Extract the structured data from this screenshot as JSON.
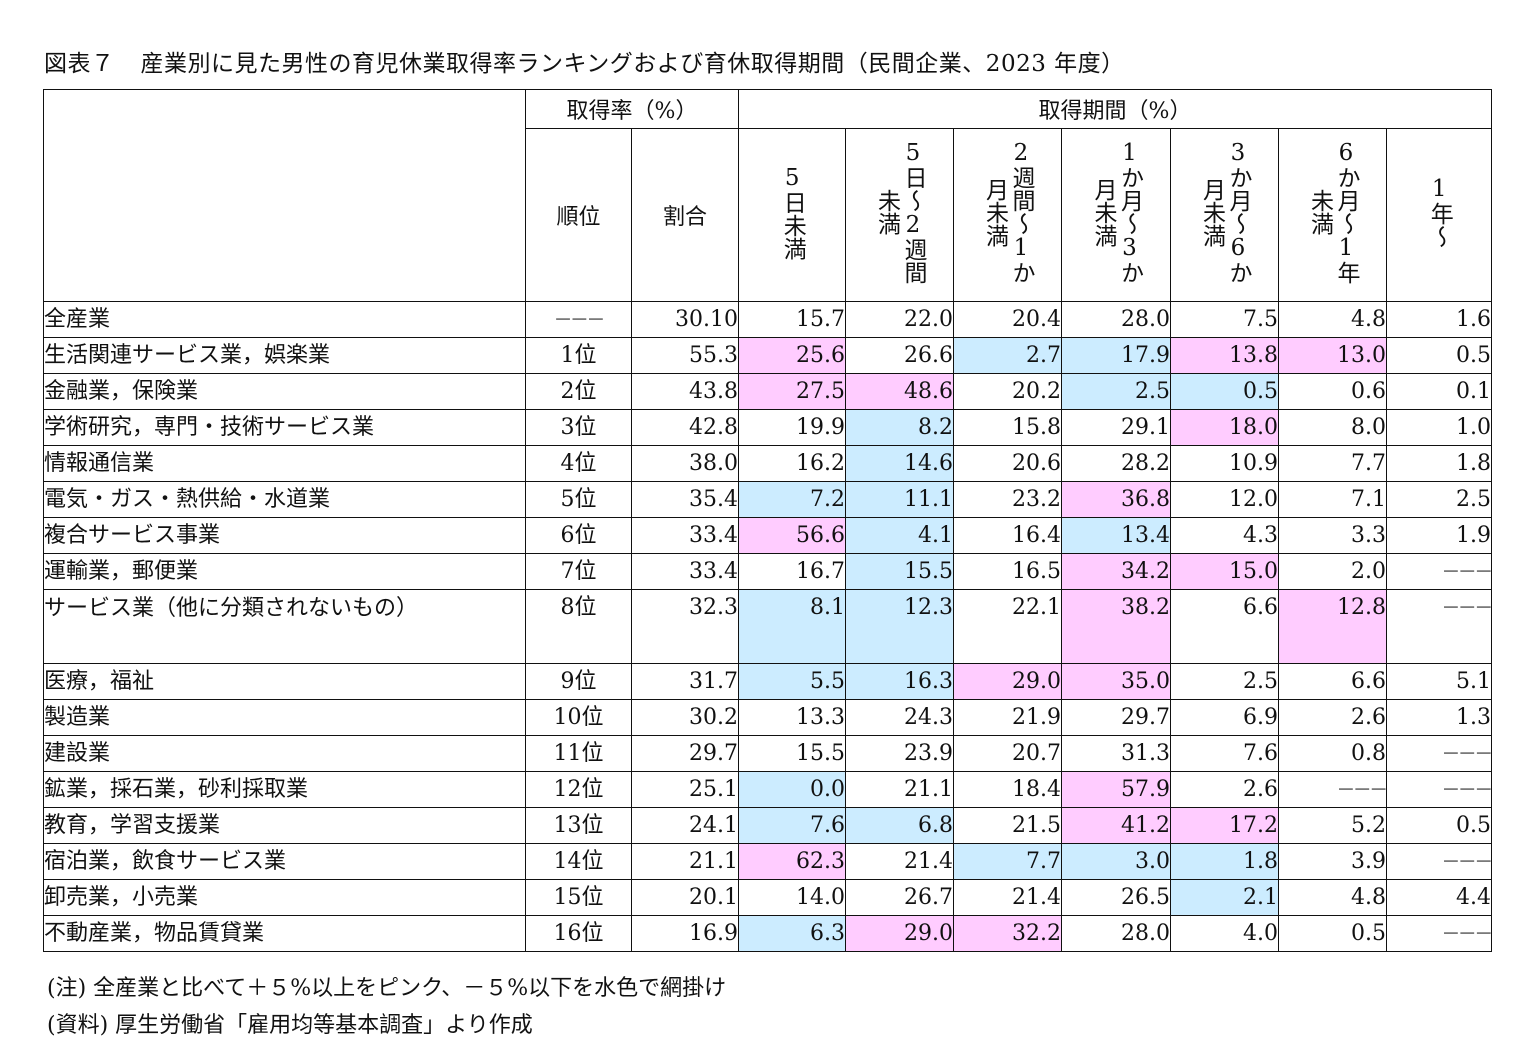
{
  "title": {
    "figure_number": "図表７",
    "text": "産業別に見た男性の育児休業取得率ランキングおよび育休取得期間（民間企業、2023 年度）"
  },
  "header": {
    "rate_group": "取得率（%）",
    "period_group": "取得期間（%）",
    "rank": "順位",
    "ratio": "割合",
    "periods": [
      "5日未満",
      "5日～2週間未満",
      "2週間～1か月未満",
      "1か月～3か月未満",
      "3か月～6か月未満",
      "6か月～1年未満",
      "1年～"
    ]
  },
  "legend_colors": {
    "pink": "#FFCCFF",
    "blue": "#CCECFF"
  },
  "rows": [
    {
      "industry": "全産業",
      "rank": "−−−",
      "ratio": "30.10",
      "p": [
        "15.7",
        "22.0",
        "20.4",
        "28.0",
        "7.5",
        "4.8",
        "1.6"
      ],
      "h": [
        "",
        "",
        "",
        "",
        "",
        "",
        ""
      ]
    },
    {
      "industry": "生活関連サービス業，娯楽業",
      "rank": "1位",
      "ratio": "55.3",
      "p": [
        "25.6",
        "26.6",
        "2.7",
        "17.9",
        "13.8",
        "13.0",
        "0.5"
      ],
      "h": [
        "pink",
        "",
        "blue",
        "blue",
        "pink",
        "pink",
        ""
      ]
    },
    {
      "industry": "金融業，保険業",
      "rank": "2位",
      "ratio": "43.8",
      "p": [
        "27.5",
        "48.6",
        "20.2",
        "2.5",
        "0.5",
        "0.6",
        "0.1"
      ],
      "h": [
        "pink",
        "pink",
        "",
        "blue",
        "blue",
        "",
        ""
      ]
    },
    {
      "industry": "学術研究，専門・技術サービス業",
      "rank": "3位",
      "ratio": "42.8",
      "p": [
        "19.9",
        "8.2",
        "15.8",
        "29.1",
        "18.0",
        "8.0",
        "1.0"
      ],
      "h": [
        "",
        "blue",
        "",
        "",
        "pink",
        "",
        ""
      ]
    },
    {
      "industry": "情報通信業",
      "rank": "4位",
      "ratio": "38.0",
      "p": [
        "16.2",
        "14.6",
        "20.6",
        "28.2",
        "10.9",
        "7.7",
        "1.8"
      ],
      "h": [
        "",
        "blue",
        "",
        "",
        "",
        "",
        ""
      ]
    },
    {
      "industry": "電気・ガス・熱供給・水道業",
      "rank": "5位",
      "ratio": "35.4",
      "p": [
        "7.2",
        "11.1",
        "23.2",
        "36.8",
        "12.0",
        "7.1",
        "2.5"
      ],
      "h": [
        "blue",
        "blue",
        "",
        "pink",
        "",
        "",
        ""
      ]
    },
    {
      "industry": "複合サービス事業",
      "rank": "6位",
      "ratio": "33.4",
      "p": [
        "56.6",
        "4.1",
        "16.4",
        "13.4",
        "4.3",
        "3.3",
        "1.9"
      ],
      "h": [
        "pink",
        "blue",
        "",
        "blue",
        "",
        "",
        ""
      ]
    },
    {
      "industry": "運輸業，郵便業",
      "rank": "7位",
      "ratio": "33.4",
      "p": [
        "16.7",
        "15.5",
        "16.5",
        "34.2",
        "15.0",
        "2.0",
        "−−−"
      ],
      "h": [
        "",
        "blue",
        "",
        "pink",
        "pink",
        "",
        ""
      ]
    },
    {
      "industry": "サービス業（他に分類されないもの）",
      "rank": "8位",
      "ratio": "32.3",
      "p": [
        "8.1",
        "12.3",
        "22.1",
        "38.2",
        "6.6",
        "12.8",
        "−−−"
      ],
      "h": [
        "blue",
        "blue",
        "",
        "pink",
        "",
        "pink",
        ""
      ]
    },
    {
      "industry": "医療，福祉",
      "rank": "9位",
      "ratio": "31.7",
      "p": [
        "5.5",
        "16.3",
        "29.0",
        "35.0",
        "2.5",
        "6.6",
        "5.1"
      ],
      "h": [
        "blue",
        "blue",
        "pink",
        "pink",
        "",
        "",
        ""
      ]
    },
    {
      "industry": "製造業",
      "rank": "10位",
      "ratio": "30.2",
      "p": [
        "13.3",
        "24.3",
        "21.9",
        "29.7",
        "6.9",
        "2.6",
        "1.3"
      ],
      "h": [
        "",
        "",
        "",
        "",
        "",
        "",
        ""
      ]
    },
    {
      "industry": "建設業",
      "rank": "11位",
      "ratio": "29.7",
      "p": [
        "15.5",
        "23.9",
        "20.7",
        "31.3",
        "7.6",
        "0.8",
        "−−−"
      ],
      "h": [
        "",
        "",
        "",
        "",
        "",
        "",
        ""
      ]
    },
    {
      "industry": "鉱業，採石業，砂利採取業",
      "rank": "12位",
      "ratio": "25.1",
      "p": [
        "0.0",
        "21.1",
        "18.4",
        "57.9",
        "2.6",
        "−−−",
        "−−−"
      ],
      "h": [
        "blue",
        "",
        "",
        "pink",
        "",
        "",
        ""
      ]
    },
    {
      "industry": "教育，学習支援業",
      "rank": "13位",
      "ratio": "24.1",
      "p": [
        "7.6",
        "6.8",
        "21.5",
        "41.2",
        "17.2",
        "5.2",
        "0.5"
      ],
      "h": [
        "blue",
        "blue",
        "",
        "pink",
        "pink",
        "",
        ""
      ]
    },
    {
      "industry": "宿泊業，飲食サービス業",
      "rank": "14位",
      "ratio": "21.1",
      "p": [
        "62.3",
        "21.4",
        "7.7",
        "3.0",
        "1.8",
        "3.9",
        "−−−"
      ],
      "h": [
        "pink",
        "",
        "blue",
        "blue",
        "blue",
        "",
        ""
      ]
    },
    {
      "industry": "卸売業，小売業",
      "rank": "15位",
      "ratio": "20.1",
      "p": [
        "14.0",
        "26.7",
        "21.4",
        "26.5",
        "2.1",
        "4.8",
        "4.4"
      ],
      "h": [
        "",
        "",
        "",
        "",
        "blue",
        "",
        ""
      ]
    },
    {
      "industry": "不動産業，物品賃貸業",
      "rank": "16位",
      "ratio": "16.9",
      "p": [
        "6.3",
        "29.0",
        "32.2",
        "28.0",
        "4.0",
        "0.5",
        "−−−"
      ],
      "h": [
        "blue",
        "pink",
        "pink",
        "",
        "",
        "",
        ""
      ]
    }
  ],
  "notes": {
    "note": "(注) 全産業と比べて＋５%以上をピンク、－５%以下を水色で網掛け",
    "source": "(資料) 厚生労働省「雇用均等基本調査」より作成"
  }
}
